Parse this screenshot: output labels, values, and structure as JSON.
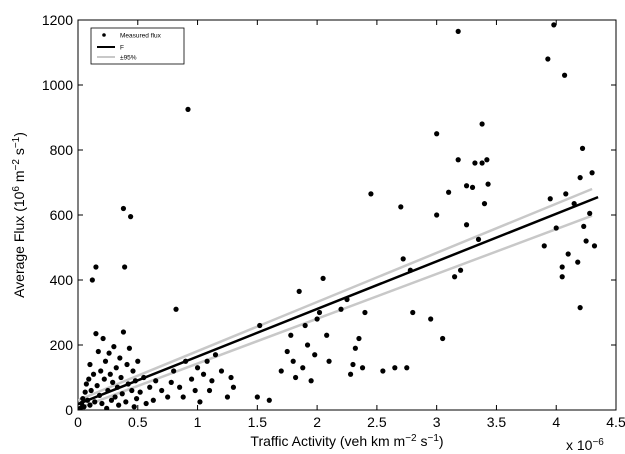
{
  "chart_data": {
    "type": "scatter",
    "xlabel_main": "Traffic Activity (veh km m",
    "xlabel_sup1": "−2",
    "xlabel_mid": " s",
    "xlabel_sup2": "−1",
    "xlabel_end": ")",
    "ylabel_main": "Average Flux (10",
    "ylabel_sup1": "6",
    "ylabel_mid1": " m",
    "ylabel_sup2": "−2",
    "ylabel_mid2": " s",
    "ylabel_sup3": "−1",
    "ylabel_end": ")",
    "x_multiplier": {
      "base": "x 10",
      "exponent": "−6"
    },
    "xlim": [
      0,
      4.5
    ],
    "ylim": [
      0,
      1200
    ],
    "x_ticks": [
      0,
      0.5,
      1,
      1.5,
      2,
      2.5,
      3,
      3.5,
      4,
      4.5
    ],
    "x_tick_labels": [
      "0",
      "0.5",
      "1",
      "1.5",
      "2",
      "2.5",
      "3",
      "3.5",
      "4",
      "4.5"
    ],
    "y_ticks": [
      0,
      200,
      400,
      600,
      800,
      1000,
      1200
    ],
    "y_tick_labels": [
      "0",
      "200",
      "400",
      "600",
      "800",
      "1000",
      "1200"
    ],
    "grid": false,
    "legend": {
      "position": "top-left",
      "entries": [
        {
          "label": "Measured flux",
          "style": "dot",
          "color": "#000000"
        },
        {
          "label": "F",
          "style": "line",
          "color": "#000000"
        },
        {
          "label": "±95%",
          "style": "line",
          "color": "#c8c8c8"
        }
      ]
    },
    "fit_line": {
      "x": [
        0,
        4.35
      ],
      "y": [
        18,
        655
      ],
      "color": "#000000"
    },
    "ci_upper": {
      "x": [
        0,
        4.3
      ],
      "y": [
        30,
        680
      ],
      "color": "#c8c8c8"
    },
    "ci_lower": {
      "x": [
        0,
        4.3
      ],
      "y": [
        5,
        598
      ],
      "color": "#c8c8c8"
    },
    "series": [
      {
        "style": "dot",
        "color": "#000000",
        "points": [
          [
            0.02,
            5
          ],
          [
            0.03,
            20
          ],
          [
            0.04,
            35
          ],
          [
            0.05,
            10
          ],
          [
            0.06,
            55
          ],
          [
            0.07,
            80
          ],
          [
            0.08,
            30
          ],
          [
            0.09,
            95
          ],
          [
            0.1,
            15
          ],
          [
            0.1,
            140
          ],
          [
            0.11,
            60
          ],
          [
            0.12,
            400
          ],
          [
            0.13,
            110
          ],
          [
            0.14,
            25
          ],
          [
            0.15,
            440
          ],
          [
            0.15,
            235
          ],
          [
            0.16,
            75
          ],
          [
            0.17,
            180
          ],
          [
            0.18,
            45
          ],
          [
            0.19,
            120
          ],
          [
            0.2,
            20
          ],
          [
            0.21,
            220
          ],
          [
            0.22,
            95
          ],
          [
            0.23,
            150
          ],
          [
            0.24,
            5
          ],
          [
            0.25,
            60
          ],
          [
            0.26,
            175
          ],
          [
            0.27,
            110
          ],
          [
            0.28,
            30
          ],
          [
            0.29,
            85
          ],
          [
            0.3,
            195
          ],
          [
            0.31,
            40
          ],
          [
            0.32,
            130
          ],
          [
            0.33,
            70
          ],
          [
            0.34,
            15
          ],
          [
            0.35,
            160
          ],
          [
            0.36,
            100
          ],
          [
            0.37,
            50
          ],
          [
            0.38,
            240
          ],
          [
            0.38,
            620
          ],
          [
            0.39,
            440
          ],
          [
            0.4,
            25
          ],
          [
            0.41,
            140
          ],
          [
            0.42,
            80
          ],
          [
            0.43,
            190
          ],
          [
            0.44,
            595
          ],
          [
            0.45,
            60
          ],
          [
            0.46,
            120
          ],
          [
            0.47,
            10
          ],
          [
            0.48,
            90
          ],
          [
            0.49,
            35
          ],
          [
            0.5,
            150
          ],
          [
            0.52,
            55
          ],
          [
            0.55,
            100
          ],
          [
            0.57,
            20
          ],
          [
            0.6,
            70
          ],
          [
            0.63,
            30
          ],
          [
            0.65,
            90
          ],
          [
            0.7,
            60
          ],
          [
            0.75,
            40
          ],
          [
            0.78,
            85
          ],
          [
            0.8,
            120
          ],
          [
            0.82,
            310
          ],
          [
            0.85,
            70
          ],
          [
            0.88,
            40
          ],
          [
            0.9,
            150
          ],
          [
            0.92,
            925
          ],
          [
            0.95,
            95
          ],
          [
            0.98,
            60
          ],
          [
            1.0,
            130
          ],
          [
            1.02,
            25
          ],
          [
            1.05,
            110
          ],
          [
            1.08,
            150
          ],
          [
            1.1,
            60
          ],
          [
            1.12,
            90
          ],
          [
            1.15,
            170
          ],
          [
            1.2,
            120
          ],
          [
            1.25,
            40
          ],
          [
            1.28,
            100
          ],
          [
            1.3,
            70
          ],
          [
            1.5,
            40
          ],
          [
            1.52,
            260
          ],
          [
            1.6,
            30
          ],
          [
            1.7,
            120
          ],
          [
            1.75,
            180
          ],
          [
            1.78,
            230
          ],
          [
            1.8,
            150
          ],
          [
            1.82,
            100
          ],
          [
            1.85,
            365
          ],
          [
            1.88,
            130
          ],
          [
            1.9,
            260
          ],
          [
            1.92,
            200
          ],
          [
            1.95,
            90
          ],
          [
            1.98,
            170
          ],
          [
            2.0,
            280
          ],
          [
            2.02,
            300
          ],
          [
            2.05,
            405
          ],
          [
            2.08,
            230
          ],
          [
            2.1,
            150
          ],
          [
            2.2,
            310
          ],
          [
            2.25,
            340
          ],
          [
            2.28,
            110
          ],
          [
            2.3,
            140
          ],
          [
            2.32,
            190
          ],
          [
            2.35,
            220
          ],
          [
            2.38,
            130
          ],
          [
            2.4,
            300
          ],
          [
            2.45,
            665
          ],
          [
            2.55,
            120
          ],
          [
            2.65,
            130
          ],
          [
            2.7,
            625
          ],
          [
            2.72,
            465
          ],
          [
            2.75,
            130
          ],
          [
            2.78,
            430
          ],
          [
            2.8,
            300
          ],
          [
            2.95,
            280
          ],
          [
            3.0,
            600
          ],
          [
            3.0,
            850
          ],
          [
            3.05,
            220
          ],
          [
            3.1,
            670
          ],
          [
            3.15,
            410
          ],
          [
            3.18,
            770
          ],
          [
            3.18,
            1165
          ],
          [
            3.2,
            430
          ],
          [
            3.25,
            570
          ],
          [
            3.25,
            690
          ],
          [
            3.3,
            685
          ],
          [
            3.32,
            760
          ],
          [
            3.35,
            525
          ],
          [
            3.38,
            880
          ],
          [
            3.38,
            760
          ],
          [
            3.4,
            635
          ],
          [
            3.42,
            770
          ],
          [
            3.43,
            695
          ],
          [
            3.9,
            505
          ],
          [
            3.93,
            1080
          ],
          [
            3.95,
            650
          ],
          [
            3.98,
            1185
          ],
          [
            4.0,
            560
          ],
          [
            4.05,
            440
          ],
          [
            4.05,
            410
          ],
          [
            4.07,
            1030
          ],
          [
            4.08,
            665
          ],
          [
            4.1,
            480
          ],
          [
            4.15,
            635
          ],
          [
            4.18,
            455
          ],
          [
            4.2,
            315
          ],
          [
            4.2,
            715
          ],
          [
            4.22,
            805
          ],
          [
            4.23,
            565
          ],
          [
            4.25,
            520
          ],
          [
            4.28,
            605
          ],
          [
            4.3,
            730
          ],
          [
            4.32,
            505
          ]
        ]
      }
    ]
  }
}
